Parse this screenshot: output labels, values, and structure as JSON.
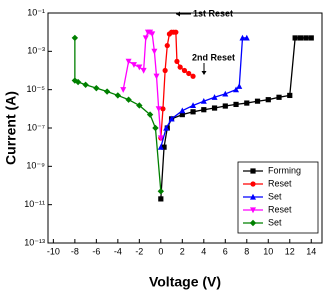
{
  "chart_data": {
    "type": "line",
    "x_label": "Voltage (V)",
    "y_label": "Current (A)",
    "xlim": [
      -10.5,
      15
    ],
    "xticks": [
      -10,
      -8,
      -6,
      -4,
      -2,
      0,
      2,
      4,
      6,
      8,
      10,
      12,
      14
    ],
    "ylim": [
      1e-13,
      0.1
    ],
    "yticks": [
      {
        "value": 1e-13,
        "label": "10⁻¹³"
      },
      {
        "value": 1e-11,
        "label": "10⁻¹¹"
      },
      {
        "value": 1e-09,
        "label": "10⁻⁹"
      },
      {
        "value": 1e-07,
        "label": "10⁻⁷"
      },
      {
        "value": 1e-05,
        "label": "10⁻⁵"
      },
      {
        "value": 0.001,
        "label": "10⁻³"
      },
      {
        "value": 0.1,
        "label": "10⁻¹"
      }
    ],
    "y_scale": "log",
    "legend": "lower right",
    "annotations": [
      "1st Reset",
      "2nd Reset"
    ],
    "series": [
      {
        "name": "Forming",
        "color": "#000000",
        "marker": "square",
        "x": [
          0,
          0.3,
          0.6,
          1,
          2,
          3,
          4,
          5,
          6,
          7,
          8,
          9,
          10,
          11,
          12,
          12.5,
          13,
          13.5,
          14
        ],
        "values": [
          2e-11,
          1e-08,
          1e-07,
          3e-07,
          5e-07,
          7e-07,
          9e-07,
          1.1e-06,
          1.4e-06,
          1.7e-06,
          2e-06,
          2.5e-06,
          3e-06,
          4e-06,
          5e-06,
          0.005,
          0.005,
          0.005,
          0.005
        ]
      },
      {
        "name": "Reset",
        "color": "#ff0000",
        "marker": "circle",
        "x": [
          0,
          0.2,
          0.4,
          0.6,
          0.8,
          1,
          1.2,
          1.4,
          1.5,
          1.8,
          2.2,
          2.6,
          3
        ],
        "values": [
          3e-08,
          1e-06,
          0.0001,
          0.002,
          0.008,
          0.01,
          0.01,
          0.01,
          0.0003,
          0.00015,
          0.0001,
          7e-05,
          5e-05
        ]
      },
      {
        "name": "Set",
        "color": "#0000ff",
        "marker": "triangle",
        "x": [
          0,
          0.5,
          1,
          2,
          3,
          4,
          5,
          6,
          7,
          7.3,
          7.6,
          8
        ],
        "values": [
          1e-08,
          1e-07,
          3e-07,
          8e-07,
          1.5e-06,
          2.5e-06,
          4e-06,
          6e-06,
          1e-05,
          1.5e-05,
          0.005,
          0.005
        ]
      },
      {
        "name": "Reset",
        "color": "#ff00ff",
        "marker": "triangle-down",
        "x": [
          0,
          -0.2,
          -0.4,
          -0.6,
          -0.8,
          -1,
          -1.2,
          -1.4,
          -1.6,
          -2,
          -2.5,
          -3,
          -3.5
        ],
        "values": [
          3e-08,
          1e-06,
          5e-05,
          0.001,
          0.008,
          0.01,
          0.01,
          0.005,
          0.0001,
          0.00015,
          0.0002,
          0.0003,
          1e-05
        ]
      },
      {
        "name": "Set",
        "color": "#008000",
        "marker": "diamond",
        "x": [
          0,
          -0.5,
          -1,
          -2,
          -3,
          -4,
          -5,
          -6,
          -7,
          -7.7,
          -8,
          -8
        ],
        "values": [
          5e-11,
          1e-07,
          5e-07,
          1.5e-06,
          3e-06,
          5e-06,
          8e-06,
          1.2e-05,
          1.8e-05,
          2.5e-05,
          3e-05,
          0.005
        ]
      }
    ]
  }
}
